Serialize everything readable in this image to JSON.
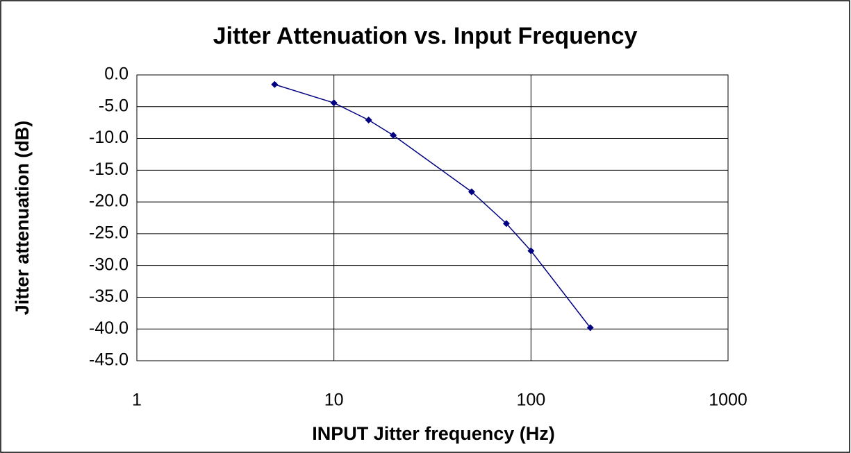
{
  "chart_data": {
    "type": "line",
    "title": "Jitter Attenuation vs. Input Frequency",
    "x_label": "INPUT Jitter frequency (Hz)",
    "y_label": "Jitter attenuation (dB)",
    "x_scale": "log",
    "xlim": [
      1,
      1000
    ],
    "xticks": [
      1,
      10,
      100,
      1000
    ],
    "ylim": [
      -45,
      0
    ],
    "yticks": [
      {
        "value": 0,
        "label": "0.0"
      },
      {
        "value": -5,
        "label": "-5.0"
      },
      {
        "value": -10,
        "label": "-10.0"
      },
      {
        "value": -15,
        "label": "-15.0"
      },
      {
        "value": -20,
        "label": "-20.0"
      },
      {
        "value": -25,
        "label": "-25.0"
      },
      {
        "value": -30,
        "label": "-30.0"
      },
      {
        "value": -35,
        "label": "-35.0"
      },
      {
        "value": -40,
        "label": "-40.0"
      },
      {
        "value": -45,
        "label": "-45.0"
      }
    ],
    "grid": true,
    "series": [
      {
        "color": "#000080",
        "x": [
          5,
          10,
          15,
          20,
          50,
          75,
          100,
          200
        ],
        "values": [
          -1.5,
          -4.4,
          -7.1,
          -9.5,
          -18.4,
          -23.4,
          -27.7,
          -39.8
        ]
      }
    ]
  }
}
